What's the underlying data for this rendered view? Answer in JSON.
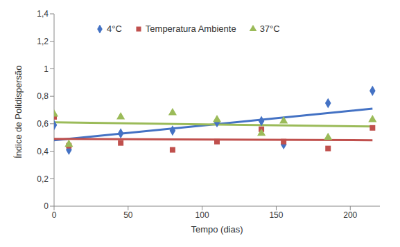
{
  "chart_data": {
    "type": "scatter",
    "x_label": "Tempo (dias)",
    "y_label": "Índice de Polidispersão",
    "x": [
      0,
      10,
      45,
      80,
      110,
      140,
      155,
      185,
      215
    ],
    "series": [
      {
        "name": "4°C",
        "color": "#4472c4",
        "marker": "diamond",
        "values": [
          0.59,
          0.41,
          0.53,
          0.55,
          0.61,
          0.62,
          0.45,
          0.75,
          0.84
        ],
        "trend": {
          "x": [
            0,
            215
          ],
          "values": [
            0.48,
            0.71
          ]
        }
      },
      {
        "name": "Temperatura Ambiente",
        "color": "#c0504d",
        "marker": "square",
        "values": [
          0.65,
          0.44,
          0.46,
          0.41,
          0.47,
          0.56,
          0.47,
          0.42,
          0.57
        ],
        "trend": {
          "x": [
            0,
            215
          ],
          "values": [
            0.49,
            0.48
          ]
        }
      },
      {
        "name": "37°C",
        "color": "#9bbb59",
        "marker": "triangle",
        "values": [
          0.67,
          0.45,
          0.65,
          0.68,
          0.63,
          0.53,
          0.62,
          0.5,
          0.63
        ],
        "trend": {
          "x": [
            0,
            215
          ],
          "values": [
            0.61,
            0.58
          ]
        }
      }
    ],
    "xlim": [
      0,
      220
    ],
    "xticks": [
      0,
      50,
      100,
      150,
      200
    ],
    "ylim": [
      0,
      1.4
    ],
    "yticks": [
      0,
      {
        "value": 0.2,
        "label": "0,2"
      },
      {
        "value": 0.4,
        "label": "0,4"
      },
      {
        "value": 0.6,
        "label": "0,6"
      },
      {
        "value": 0.8,
        "label": "0,8"
      },
      1,
      {
        "value": 1.2,
        "label": "1,2"
      },
      {
        "value": 1.4,
        "label": "1,4"
      }
    ],
    "grid": false,
    "legend": "top"
  }
}
